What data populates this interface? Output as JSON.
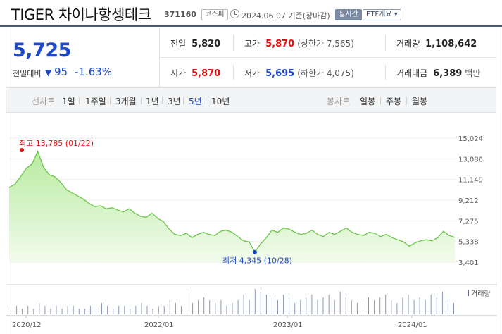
{
  "header": {
    "name": "TIGER 차이나항셍테크",
    "code": "371160",
    "market_badge": "코스피",
    "asof_date": "2024.06.07",
    "asof_text": "기준(장마감)",
    "live_badge": "실시간",
    "etf_badge": "ETF개요 ▾"
  },
  "quote": {
    "price": "5,725",
    "change_label": "전일대비",
    "change_direction": "▼",
    "change": "95",
    "change_pct": "-1.63%",
    "prev_close": {
      "label": "전일",
      "value": "5,820"
    },
    "high": {
      "label": "고가",
      "value": "5,870",
      "extra": "(상한가 7,565)"
    },
    "volume": {
      "label": "거래량",
      "value": "1,108,642"
    },
    "open": {
      "label": "시가",
      "value": "5,870"
    },
    "low": {
      "label": "저가",
      "value": "5,695",
      "extra": "(하한가 4,075)"
    },
    "trade_amount": {
      "label": "거래대금",
      "value": "6,389",
      "unit": "백만"
    }
  },
  "range_tabs": {
    "label": "선차트",
    "items": [
      "1일",
      "1주일",
      "3개월",
      "1년",
      "3년",
      "5년",
      "10년"
    ],
    "active": "5년"
  },
  "candle_tabs": {
    "label": "봉차트",
    "items": [
      "일봉",
      "주봉",
      "월봉"
    ]
  },
  "colors": {
    "up": "#dd1111",
    "down": "#1d48c9",
    "area_line": "#6bc44a",
    "area_fill": "#dff5d2"
  },
  "chart_data": {
    "type": "area",
    "y_ticks": [
      "15,024",
      "13,086",
      "11,149",
      "9,212",
      "7,275",
      "5,338",
      "3,401"
    ],
    "ylim": [
      3401,
      15024
    ],
    "x_ticks": [
      "2020/12",
      "2022/01",
      "2023/01",
      "2024/01"
    ],
    "high_annotation": "최고 13,785 (01/22)",
    "low_annotation": "최저 4,345 (10/28)",
    "volume_label": "거래량",
    "series": [
      {
        "values": [
          10400,
          10700,
          11400,
          12200,
          12600,
          13785,
          12300,
          11600,
          11400,
          10900,
          10200,
          9900,
          9600,
          9300,
          8900,
          8600,
          8700,
          8400,
          8500,
          8300,
          8100,
          8400,
          8000,
          7700,
          7600,
          8000,
          7500,
          7200,
          6500,
          6000,
          5900,
          6100,
          5700,
          6000,
          6200,
          6000,
          5900,
          6300,
          6400,
          6200,
          5800,
          5400,
          5300,
          4345,
          5100,
          5700,
          6400,
          6200,
          6600,
          6500,
          6200,
          6000,
          6100,
          6400,
          6000,
          5800,
          6200,
          6000,
          6300,
          6600,
          6200,
          6000,
          5900,
          6200,
          6100,
          5800,
          6000,
          5700,
          5500,
          5300,
          4900,
          5200,
          5400,
          5500,
          5400,
          5700,
          6300,
          5900,
          5725
        ]
      }
    ],
    "volume": [
      2,
      3,
      2,
      3,
      2,
      4,
      3,
      2,
      3,
      2,
      3,
      3,
      2,
      2,
      3,
      2,
      4,
      3,
      2,
      3,
      3,
      2,
      3,
      4,
      3,
      2,
      3,
      3,
      5,
      4,
      3,
      8,
      4,
      5,
      6,
      5,
      4,
      5,
      3,
      4,
      5,
      7,
      5,
      9,
      8,
      7,
      6,
      5,
      7,
      6,
      4,
      5,
      6,
      7,
      5,
      6,
      7,
      5,
      8,
      6,
      5,
      4,
      5,
      6,
      5,
      6,
      7,
      5,
      4,
      6,
      7,
      5,
      6,
      5,
      7,
      6,
      8,
      5,
      4
    ]
  }
}
